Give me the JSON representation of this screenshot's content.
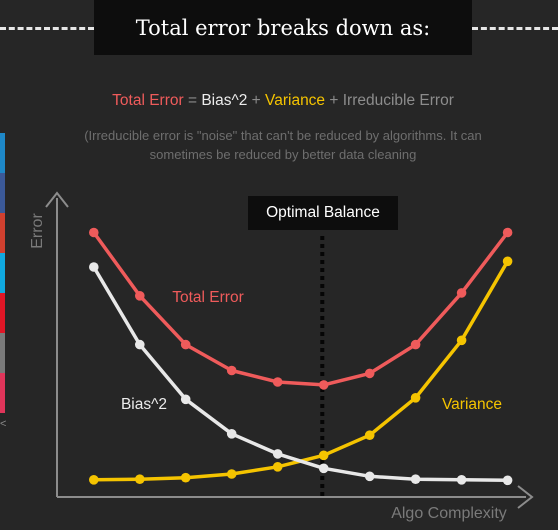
{
  "header": {
    "title": "Total error breaks down as:"
  },
  "formula": {
    "total": "Total Error",
    "eq": " = ",
    "bias": "Bias^2",
    "plus1": " + ",
    "variance": "Variance",
    "plus2": " + ",
    "irreducible": "Irreducible Error"
  },
  "note": {
    "line1": "(Irreducible error is \"noise\" that can't be reduced by algorithms. It can",
    "line2": "sometimes be reduced by better data cleaning"
  },
  "sidebar": {
    "swatch_colors": [
      "#1e88c8",
      "#3b5998",
      "#d0402f",
      "#10a9e0",
      "#e01626",
      "#7a7a7a",
      "#e0355a"
    ],
    "mark": "<"
  },
  "colors": {
    "background": "#262626",
    "total": "#ef5b5b",
    "bias": "#e8e8e8",
    "variance": "#f5c400",
    "axis": "#8c8c8c",
    "annotation_bg": "#0d0d0d"
  },
  "chart_data": {
    "type": "line",
    "xlabel": "Algo Complexity",
    "ylabel": "Error",
    "x": [
      1,
      2,
      3,
      4,
      5,
      6,
      7,
      8,
      9,
      10
    ],
    "series": [
      {
        "name": "Total Error",
        "color": "#ef5b5b",
        "values": [
          8.6,
          6.4,
          4.7,
          3.8,
          3.4,
          3.3,
          3.7,
          4.7,
          6.5,
          8.6
        ]
      },
      {
        "name": "Bias^2",
        "color": "#e8e8e8",
        "values": [
          7.4,
          4.7,
          2.8,
          1.6,
          0.9,
          0.4,
          0.12,
          0.02,
          0.0,
          -0.02
        ]
      },
      {
        "name": "Variance",
        "color": "#f5c400",
        "values": [
          0.0,
          0.02,
          0.07,
          0.2,
          0.45,
          0.85,
          1.55,
          2.85,
          4.85,
          7.6
        ]
      }
    ],
    "series_label_text": {
      "total": "Total Error",
      "bias": "Bias^2",
      "variance": "Variance"
    },
    "annotation": {
      "label": "Optimal Balance",
      "x": 5.97
    },
    "xlim": [
      0.2,
      10.4
    ],
    "ylim": [
      -0.6,
      9.8
    ],
    "grid": false,
    "legend": "none"
  }
}
